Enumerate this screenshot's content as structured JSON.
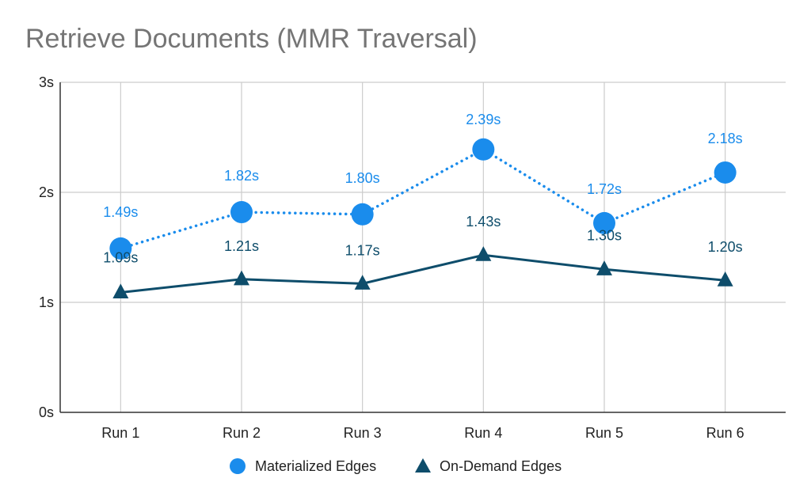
{
  "chart_data": {
    "type": "line",
    "title": "Retrieve Documents (MMR Traversal)",
    "xlabel": "",
    "ylabel": "",
    "categories": [
      "Run 1",
      "Run 2",
      "Run 3",
      "Run 4",
      "Run 5",
      "Run 6"
    ],
    "ylim": [
      0,
      3
    ],
    "yticks": [
      {
        "value": 0,
        "label": "0s"
      },
      {
        "value": 1,
        "label": "1s"
      },
      {
        "value": 2,
        "label": "2s"
      },
      {
        "value": 3,
        "label": "3s"
      }
    ],
    "grid": true,
    "legend_position": "bottom",
    "series": [
      {
        "name": "Materialized Edges",
        "values": [
          1.49,
          1.82,
          1.8,
          2.39,
          1.72,
          2.18
        ],
        "labels": [
          "1.49s",
          "1.82s",
          "1.80s",
          "2.39s",
          "1.72s",
          "2.18s"
        ],
        "color": "#1a8cec",
        "marker": "circle",
        "line_style": "dotted"
      },
      {
        "name": "On-Demand Edges",
        "values": [
          1.09,
          1.21,
          1.17,
          1.43,
          1.3,
          1.2
        ],
        "labels": [
          "1.09s",
          "1.21s",
          "1.17s",
          "1.43s",
          "1.30s",
          "1.20s"
        ],
        "color": "#0e4d6b",
        "marker": "triangle",
        "line_style": "solid"
      }
    ]
  }
}
